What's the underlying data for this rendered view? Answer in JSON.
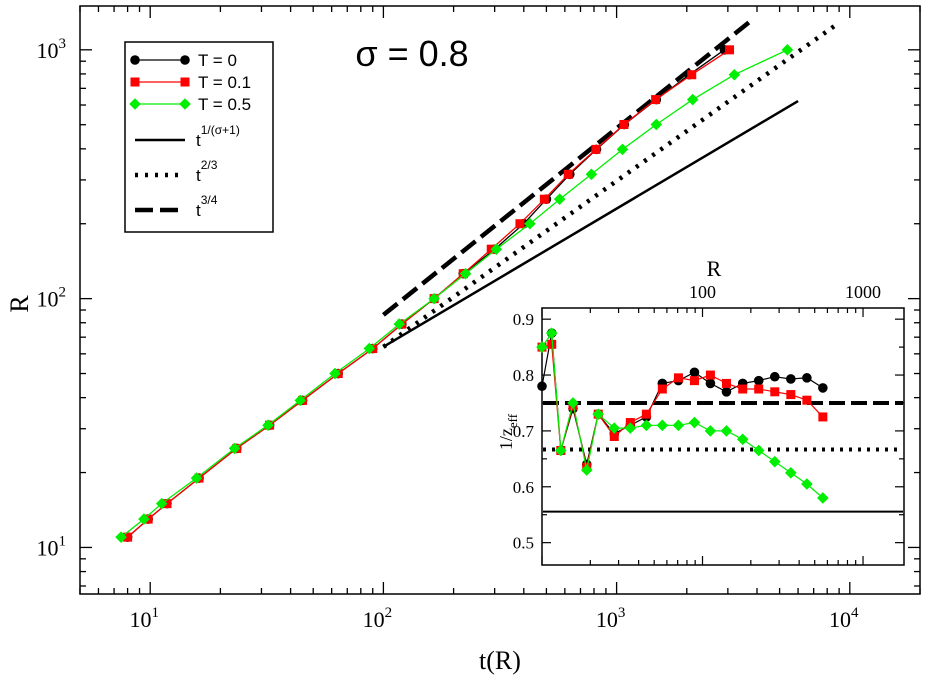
{
  "chart_data": [
    {
      "type": "line",
      "scale": "log-log",
      "title": "σ = 0.8",
      "xlabel": "t(R)",
      "ylabel": "R",
      "xlim": [
        5,
        20000
      ],
      "ylim": [
        6.5,
        1500
      ],
      "x_ticks": [
        {
          "value": 10,
          "base": "10",
          "exp": "1"
        },
        {
          "value": 100,
          "base": "10",
          "exp": "2"
        },
        {
          "value": 1000,
          "base": "10",
          "exp": "3"
        },
        {
          "value": 10000,
          "base": "10",
          "exp": "4"
        }
      ],
      "y_ticks": [
        {
          "value": 10,
          "base": "10",
          "exp": "1"
        },
        {
          "value": 100,
          "base": "10",
          "exp": "2"
        },
        {
          "value": 1000,
          "base": "10",
          "exp": "3"
        }
      ],
      "series": [
        {
          "name": "T = 0",
          "color": "#000000",
          "marker": "circle",
          "points": [
            [
              8.0,
              11
            ],
            [
              9.8,
              13
            ],
            [
              11.8,
              15
            ],
            [
              16.2,
              19
            ],
            [
              23.5,
              25
            ],
            [
              32.5,
              31
            ],
            [
              45,
              39
            ],
            [
              64,
              50
            ],
            [
              90,
              63
            ],
            [
              120,
              79
            ],
            [
              165,
              100
            ],
            [
              220,
              126
            ],
            [
              300,
              158
            ],
            [
              400,
              200
            ],
            [
              500,
              251
            ],
            [
              630,
              316
            ],
            [
              820,
              398
            ],
            [
              1080,
              501
            ],
            [
              1480,
              631
            ],
            [
              2050,
              794
            ],
            [
              2900,
              1000
            ]
          ]
        },
        {
          "name": "T = 0.1",
          "color": "#ff0000",
          "marker": "square",
          "points": [
            [
              8.0,
              11
            ],
            [
              9.8,
              13
            ],
            [
              11.8,
              15
            ],
            [
              16.2,
              19
            ],
            [
              23.5,
              25
            ],
            [
              32.5,
              31
            ],
            [
              45,
              39
            ],
            [
              64,
              50
            ],
            [
              90,
              63
            ],
            [
              120,
              79
            ],
            [
              165,
              100
            ],
            [
              220,
              126
            ],
            [
              290,
              158
            ],
            [
              385,
              200
            ],
            [
              490,
              251
            ],
            [
              620,
              316
            ],
            [
              815,
              398
            ],
            [
              1075,
              501
            ],
            [
              1470,
              631
            ],
            [
              2100,
              794
            ],
            [
              3050,
              1000
            ]
          ]
        },
        {
          "name": "T = 0.5",
          "color": "#00ee00",
          "marker": "diamond",
          "points": [
            [
              7.5,
              11
            ],
            [
              9.4,
              13
            ],
            [
              11.2,
              15
            ],
            [
              15.8,
              19
            ],
            [
              23,
              25
            ],
            [
              32,
              31
            ],
            [
              44,
              39
            ],
            [
              62,
              50
            ],
            [
              87,
              63
            ],
            [
              117,
              79
            ],
            [
              165,
              100
            ],
            [
              225,
              126
            ],
            [
              305,
              158
            ],
            [
              425,
              200
            ],
            [
              570,
              251
            ],
            [
              780,
              316
            ],
            [
              1060,
              398
            ],
            [
              1480,
              501
            ],
            [
              2120,
              631
            ],
            [
              3200,
              794
            ],
            [
              5400,
              1000
            ]
          ]
        }
      ],
      "reference_lines": [
        {
          "name": "t^(1/(σ+1))",
          "label_base": "t",
          "label_exp": "1/(σ+1)",
          "style": "solid",
          "exponent": 0.5556,
          "x_range": [
            100,
            6000
          ],
          "y_at_start": 64
        },
        {
          "name": "t^(2/3)",
          "label_base": "t",
          "label_exp": "2/3",
          "style": "dotted",
          "exponent": 0.6667,
          "x_range": [
            100,
            9000
          ],
          "y_at_start": 64
        },
        {
          "name": "t^(3/4)",
          "label_base": "t",
          "label_exp": "3/4",
          "style": "dashed",
          "exponent": 0.75,
          "x_range": [
            100,
            3700
          ],
          "y_at_start": 86
        }
      ],
      "legend_position": "top-left"
    },
    {
      "type": "line",
      "scale": "log-x",
      "role": "inset",
      "xlabel": "R",
      "ylabel_base": "1/z",
      "ylabel_sub": "eff",
      "xlim": [
        10,
        1800
      ],
      "ylim": [
        0.46,
        0.92
      ],
      "x_ticks": [
        {
          "value": 100,
          "label": "100"
        },
        {
          "value": 1000,
          "label": "1000"
        }
      ],
      "y_ticks": [
        0.5,
        0.6,
        0.7,
        0.8,
        0.9
      ],
      "y_tick_labels": [
        "0.5",
        "0.6",
        "0.7",
        "0.8",
        "0.9"
      ],
      "series": [
        {
          "name": "T = 0",
          "color": "#000000",
          "marker": "circle",
          "points": [
            [
              10,
              0.78
            ],
            [
              11.5,
              0.875
            ],
            [
              13.1,
              0.665
            ],
            [
              15.6,
              0.74
            ],
            [
              19,
              0.64
            ],
            [
              22.4,
              0.73
            ],
            [
              28.2,
              0.695
            ],
            [
              35.5,
              0.71
            ],
            [
              44.7,
              0.725
            ],
            [
              56.2,
              0.785
            ],
            [
              70.8,
              0.79
            ],
            [
              89.1,
              0.805
            ],
            [
              112,
              0.785
            ],
            [
              141,
              0.77
            ],
            [
              178,
              0.785
            ],
            [
              224,
              0.79
            ],
            [
              282,
              0.797
            ],
            [
              355,
              0.793
            ],
            [
              447,
              0.795
            ],
            [
              562,
              0.777
            ]
          ]
        },
        {
          "name": "T = 0.1",
          "color": "#ff0000",
          "marker": "square",
          "points": [
            [
              10,
              0.85
            ],
            [
              11.5,
              0.855
            ],
            [
              13.1,
              0.665
            ],
            [
              15.6,
              0.745
            ],
            [
              19,
              0.635
            ],
            [
              22.4,
              0.73
            ],
            [
              28.2,
              0.69
            ],
            [
              35.5,
              0.715
            ],
            [
              44.7,
              0.73
            ],
            [
              56.2,
              0.775
            ],
            [
              70.8,
              0.795
            ],
            [
              89.1,
              0.79
            ],
            [
              112,
              0.8
            ],
            [
              141,
              0.785
            ],
            [
              178,
              0.775
            ],
            [
              224,
              0.775
            ],
            [
              282,
              0.77
            ],
            [
              355,
              0.765
            ],
            [
              447,
              0.755
            ],
            [
              562,
              0.725
            ]
          ]
        },
        {
          "name": "T = 0.5",
          "color": "#00ee00",
          "marker": "diamond",
          "points": [
            [
              10,
              0.85
            ],
            [
              11.5,
              0.875
            ],
            [
              13.1,
              0.665
            ],
            [
              15.6,
              0.75
            ],
            [
              19,
              0.63
            ],
            [
              22.4,
              0.73
            ],
            [
              28.2,
              0.705
            ],
            [
              35.5,
              0.705
            ],
            [
              44.7,
              0.71
            ],
            [
              56.2,
              0.71
            ],
            [
              70.8,
              0.71
            ],
            [
              89.1,
              0.715
            ],
            [
              112,
              0.7
            ],
            [
              141,
              0.7
            ],
            [
              178,
              0.685
            ],
            [
              224,
              0.665
            ],
            [
              282,
              0.645
            ],
            [
              355,
              0.625
            ],
            [
              447,
              0.605
            ],
            [
              562,
              0.58
            ]
          ]
        }
      ],
      "reference_lines": [
        {
          "name": "1/(σ+1)",
          "style": "solid",
          "value": 0.5556
        },
        {
          "name": "2/3",
          "style": "dotted",
          "value": 0.6667
        },
        {
          "name": "3/4",
          "style": "dashed",
          "value": 0.75
        }
      ]
    }
  ]
}
